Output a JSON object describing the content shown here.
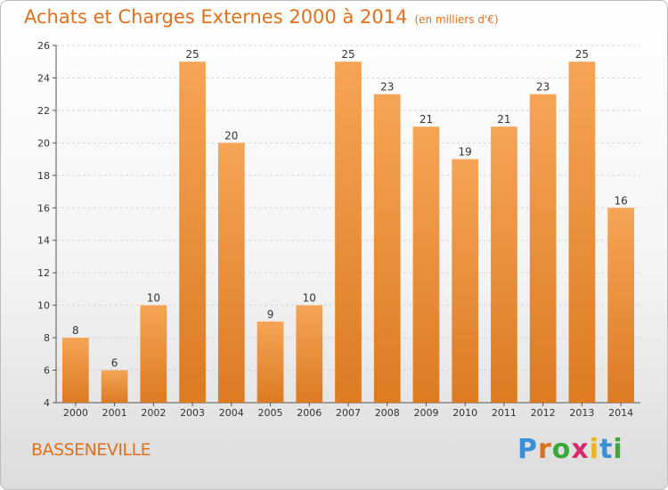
{
  "header": {
    "title": "Achats et Charges Externes 2000 à 2014",
    "subtitle": "(en milliers d'€)"
  },
  "footer": {
    "commune": "BASSENEVILLE",
    "logo_letters": [
      "P",
      "r",
      "o",
      "x",
      "i",
      "t",
      "i"
    ],
    "logo_colors": [
      "#3a8fd6",
      "#e0701c",
      "#3aa83a",
      "#d62a6e",
      "#e8b51c",
      "#3a8fd6",
      "#3aa83a"
    ]
  },
  "chart_data": {
    "type": "bar",
    "categories": [
      "2000",
      "2001",
      "2002",
      "2003",
      "2004",
      "2005",
      "2006",
      "2007",
      "2008",
      "2009",
      "2010",
      "2011",
      "2012",
      "2013",
      "2014"
    ],
    "values": [
      8,
      6,
      10,
      25,
      20,
      9,
      10,
      25,
      23,
      21,
      19,
      21,
      23,
      25,
      16
    ],
    "ylim": [
      4,
      26
    ],
    "yticks": [
      4,
      6,
      8,
      10,
      12,
      14,
      16,
      18,
      20,
      22,
      24,
      26
    ],
    "grid": true,
    "bar_color_top": "#f5a555",
    "bar_color_bottom": "#dd7a22"
  }
}
